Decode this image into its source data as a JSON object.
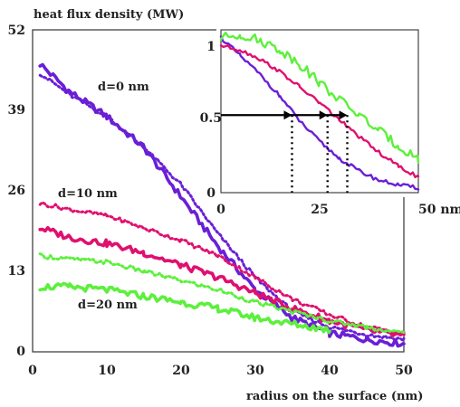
{
  "chart_data": [
    {
      "type": "line",
      "ylabel": "heat flux density (MW)",
      "xlabel": "radius on the surface (nm)",
      "xlim": [
        0,
        50
      ],
      "ylim": [
        0,
        52
      ],
      "x_ticks": [
        "0",
        "10",
        "20",
        "30",
        "40",
        "50"
      ],
      "y_ticks": [
        "0",
        "13",
        "26",
        "39",
        "52"
      ],
      "annotations": [
        "d=0 nm",
        "d=10 nm",
        "d=20 nm"
      ],
      "series": [
        {
          "color": "#6a1fd6",
          "style": "solid",
          "x": [
            1,
            5,
            10,
            15,
            20,
            25,
            30,
            35,
            40,
            45,
            50
          ],
          "y": [
            46.5,
            42,
            38,
            33,
            25,
            17,
            10,
            5.5,
            3,
            2,
            1.3
          ]
        },
        {
          "color": "#6a1fd6",
          "style": "dotted",
          "x": [
            1,
            5,
            10,
            15,
            20,
            25,
            30,
            35,
            40,
            45,
            50
          ],
          "y": [
            45,
            41.5,
            38,
            33,
            27,
            19,
            12,
            6.5,
            4,
            2.8,
            2
          ]
        },
        {
          "color": "#e0106f",
          "style": "solid",
          "x": [
            1,
            5,
            10,
            15,
            20,
            25,
            30,
            35,
            40,
            45,
            50
          ],
          "y": [
            20,
            18.5,
            17.5,
            16,
            14,
            12,
            9.5,
            7,
            5,
            3.5,
            2.5
          ]
        },
        {
          "color": "#e0106f",
          "style": "dotted",
          "x": [
            1,
            5,
            10,
            15,
            20,
            25,
            30,
            35,
            40,
            45,
            50
          ],
          "y": [
            24,
            23,
            22,
            20,
            18,
            15.5,
            12,
            8.5,
            6,
            4,
            3
          ]
        },
        {
          "color": "#5cf03c",
          "style": "solid",
          "x": [
            1,
            5,
            10,
            15,
            20,
            25,
            30,
            35,
            40
          ],
          "y": [
            10.5,
            10.5,
            10,
            9,
            8,
            7,
            5.5,
            4.5,
            3.5
          ]
        },
        {
          "color": "#5cf03c",
          "style": "dotted",
          "x": [
            1,
            5,
            10,
            15,
            20,
            25,
            30,
            35,
            40,
            45,
            50
          ],
          "y": [
            15.5,
            15,
            14.5,
            13,
            11.5,
            10,
            8,
            6.5,
            5,
            4,
            3
          ]
        }
      ]
    },
    {
      "type": "line",
      "xlim": [
        0,
        50
      ],
      "ylim": [
        0,
        1.05
      ],
      "x_ticks": [
        "0",
        "25",
        "50 nm"
      ],
      "y_ticks": [
        "0",
        "0.5",
        "1"
      ],
      "reference_line": {
        "y": 0.5
      },
      "markers_x": [
        18,
        27,
        32
      ],
      "series": [
        {
          "color": "#6a1fd6",
          "x": [
            0,
            5,
            10,
            15,
            20,
            25,
            30,
            35,
            40,
            45,
            50
          ],
          "y": [
            1.0,
            0.88,
            0.76,
            0.62,
            0.46,
            0.33,
            0.22,
            0.14,
            0.08,
            0.05,
            0.03
          ]
        },
        {
          "color": "#e0106f",
          "x": [
            0,
            5,
            10,
            15,
            20,
            25,
            30,
            35,
            40,
            45,
            50
          ],
          "y": [
            0.95,
            0.92,
            0.86,
            0.78,
            0.68,
            0.58,
            0.47,
            0.36,
            0.26,
            0.17,
            0.1
          ]
        },
        {
          "color": "#5cf03c",
          "x": [
            0,
            5,
            10,
            15,
            20,
            25,
            30,
            35,
            40,
            45,
            50
          ],
          "y": [
            1.0,
            1.02,
            0.98,
            0.92,
            0.83,
            0.71,
            0.6,
            0.5,
            0.4,
            0.3,
            0.22
          ]
        }
      ]
    }
  ]
}
